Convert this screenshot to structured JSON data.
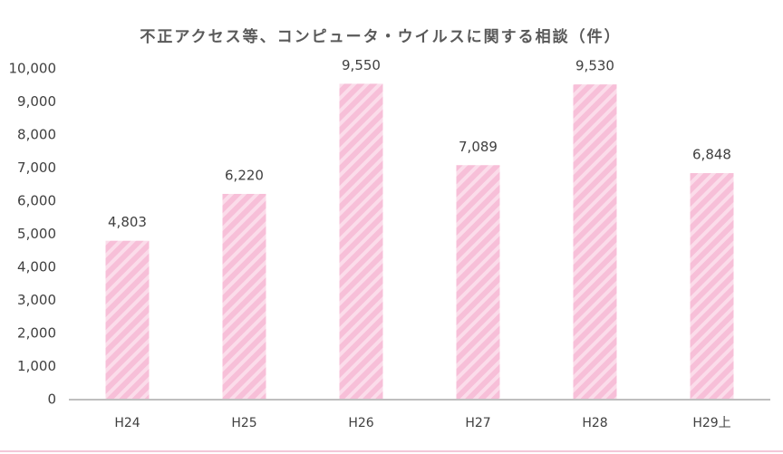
{
  "chart_data": {
    "type": "bar",
    "title": "不正アクセス等、コンピュータ・ウイルスに関する相談（件）",
    "categories": [
      "H24",
      "H25",
      "H26",
      "H27",
      "H28",
      "H29上"
    ],
    "values": [
      4803,
      6220,
      9550,
      7089,
      9530,
      6848
    ],
    "value_labels": [
      "4,803",
      "6,220",
      "9,550",
      "7,089",
      "9,530",
      "6,848"
    ],
    "color": "#f7bfd8",
    "ylim": [
      0,
      10000
    ],
    "yticks": [
      0,
      {
        "value": 1000,
        "label": "1,000"
      },
      {
        "value": 2000,
        "label": "2,000"
      },
      {
        "value": 3000,
        "label": "3,000"
      },
      {
        "value": 4000,
        "label": "4,000"
      },
      {
        "value": 5000,
        "label": "5,000"
      },
      {
        "value": 6000,
        "label": "6,000"
      },
      {
        "value": 7000,
        "label": "7,000"
      },
      {
        "value": 8000,
        "label": "8,000"
      },
      {
        "value": 9000,
        "label": "9,000"
      },
      {
        "value": 10000,
        "label": "10,000"
      }
    ],
    "grid": false
  }
}
